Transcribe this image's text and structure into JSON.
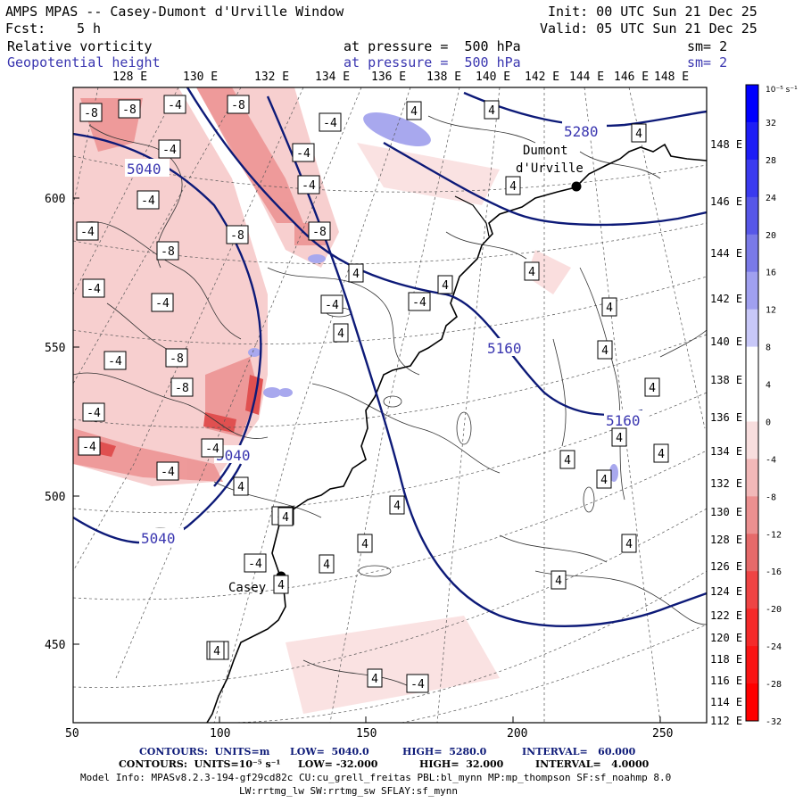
{
  "header": {
    "title": "AMPS MPAS -- Casey-Dumont d'Urville Window",
    "init": "Init: 00 UTC Sun 21 Dec 25",
    "fcst_label": "Fcst:",
    "fcst_value": "5 h",
    "valid": "Valid: 05 UTC Sun 21 Dec 25",
    "field1_name": "Relative vorticity",
    "field1_level": "at pressure =  500 hPa",
    "field1_smooth": "sm= 2",
    "field2_name": "Geopotential height",
    "field2_level": "at pressure =  500 hPa",
    "field2_smooth": "sm= 2"
  },
  "top_lon_labels": [
    "128 E",
    "130 E",
    "132 E",
    "134 E",
    "136 E",
    "138 E",
    "140 E",
    "142 E",
    "144 E",
    "146 E",
    "148 E"
  ],
  "right_lon_labels": [
    "148 E",
    "146 E",
    "144 E",
    "142 E",
    "140 E",
    "138 E",
    "136 E",
    "134 E",
    "132 E",
    "130 E",
    "128 E",
    "126 E",
    "124 E",
    "122 E",
    "120 E",
    "118 E",
    "116 E",
    "114 E",
    "112 E"
  ],
  "x_axis_labels": [
    "50",
    "100",
    "150",
    "200",
    "250"
  ],
  "y_axis_labels": [
    "600",
    "550",
    "500",
    "450"
  ],
  "colorbar": {
    "unit_label": "10⁻⁵ s⁻¹",
    "tick_labels": [
      "32",
      "28",
      "24",
      "20",
      "16",
      "12",
      "8",
      "4",
      "0",
      "-4",
      "-8",
      "-12",
      "-16",
      "-20",
      "-24",
      "-28",
      "-32"
    ],
    "colors": [
      "#0000ff",
      "#1d1df6",
      "#3a3aef",
      "#5757e8",
      "#7a7ae8",
      "#a0a0f0",
      "#c8c8f8",
      "#ffffff",
      "#ffffff",
      "#f8dede",
      "#f2b8b8",
      "#ec9090",
      "#e66a6a",
      "#ef4444",
      "#f52a2a",
      "#fa1414",
      "#ff0000"
    ]
  },
  "places": {
    "dumont_line1": "Dumont",
    "dumont_line2": "d'Urville",
    "casey": "Casey"
  },
  "height_contour_labels": [
    "5280",
    "5040",
    "5160",
    "5160",
    "5040",
    "5040"
  ],
  "vorticity_labels": [
    "-8",
    "-8",
    "-4",
    "-8",
    "-4",
    "-4",
    "-4",
    "-4",
    "-4",
    "-4",
    "-8",
    "-4",
    "-8",
    "-8",
    "-4",
    "-4",
    "-4",
    "-4",
    "-4",
    "-8",
    "-4",
    "-8",
    "-4",
    "-4",
    "-8",
    "-4",
    "-4",
    "-4",
    "4",
    "4",
    "4",
    "4",
    "4",
    "4",
    "4",
    "4",
    "4",
    "4",
    "4",
    "4",
    "4",
    "4",
    "4",
    "4",
    "4",
    "4",
    "4",
    "4",
    "4",
    "4",
    "4",
    "4",
    "4",
    "-4"
  ],
  "footer": {
    "c1_label": "CONTOURS:  UNITS=m",
    "c1_low": "LOW=  5040.0",
    "c1_high": "HIGH=  5280.0",
    "c1_interval": "INTERVAL=   60.000",
    "c2_label": "CONTOURS:  UNITS=10⁻⁵ s⁻¹",
    "c2_low": "LOW= -32.000",
    "c2_high": "HIGH=  32.000",
    "c2_interval": "INTERVAL=   4.0000",
    "model_info": "Model Info: MPASv8.2.3-194-gf29cd82c CU:cu_grell_freitas PBL:bl_mynn MP:mp_thompson SF:sf_noahmp 8.0",
    "model_info2": "LW:rrtmg_lw SW:rrtmg_sw SFLAY:sf_mynn"
  }
}
